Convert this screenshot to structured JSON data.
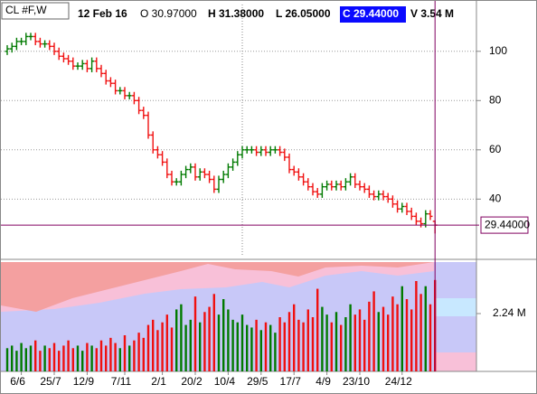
{
  "chart_data": {
    "type": "ohlc",
    "header": {
      "symbol": "CL #F,W",
      "date": "12 Feb 16",
      "open": "O 30.97000",
      "high": "H 31.38000",
      "low": "L 26.05000",
      "close": "C 29.44000",
      "volume": "V 3.54 M"
    },
    "categories": [
      null,
      null,
      null,
      "6/6",
      null,
      null,
      null,
      null,
      null,
      null,
      "25/7",
      null,
      null,
      null,
      null,
      null,
      null,
      "12/9",
      null,
      null,
      null,
      null,
      null,
      null,
      null,
      "7/11",
      null,
      null,
      null,
      null,
      null,
      null,
      null,
      "2/1",
      null,
      null,
      null,
      null,
      null,
      null,
      "20/2",
      null,
      null,
      null,
      null,
      null,
      null,
      "10/4",
      null,
      null,
      null,
      null,
      null,
      null,
      "29/5",
      null,
      null,
      null,
      null,
      null,
      null,
      "17/7",
      null,
      null,
      null,
      null,
      null,
      null,
      "4/9",
      null,
      null,
      null,
      null,
      null,
      null,
      "23/10",
      null,
      null,
      null,
      null,
      null,
      null,
      null,
      null,
      "24/12",
      null,
      null,
      null,
      null,
      null,
      null,
      null
    ],
    "open": [
      100,
      101,
      102,
      104,
      104,
      106,
      106,
      104,
      103,
      103,
      102,
      100,
      98,
      97,
      96,
      94,
      94,
      95,
      93,
      96,
      93,
      91,
      88,
      87,
      84,
      84,
      82,
      82,
      80,
      76,
      74,
      66,
      60,
      58,
      55,
      50,
      47,
      47,
      50,
      52,
      53,
      49,
      51,
      50,
      48,
      44,
      48,
      50,
      53,
      55,
      58,
      60,
      60,
      60,
      59,
      60,
      59,
      60,
      60,
      59,
      57,
      52,
      51,
      49,
      47,
      45,
      43,
      42,
      45,
      46,
      45,
      46,
      45,
      47,
      49,
      46,
      45,
      44,
      42,
      41,
      42,
      41,
      40,
      38,
      36,
      37,
      35,
      33,
      31,
      30,
      34,
      30.97
    ],
    "high": [
      102.5,
      103.5,
      105.5,
      105.5,
      107.5,
      107.5,
      107.5,
      105.5,
      104.5,
      104.5,
      103.5,
      101.5,
      99.5,
      98.5,
      97.5,
      95.5,
      96.5,
      96.5,
      97.5,
      97.5,
      94.5,
      92.5,
      89.5,
      88.5,
      85.5,
      85.5,
      83.5,
      83.5,
      81.5,
      77.5,
      75.5,
      67.5,
      61.5,
      59.5,
      56.5,
      51.5,
      48.5,
      51.5,
      53.5,
      54.5,
      54.5,
      52.5,
      52.5,
      51.5,
      49.5,
      49.5,
      51.5,
      54.5,
      56.5,
      59.5,
      61.5,
      61.5,
      61.5,
      61.5,
      61.5,
      61.5,
      61.5,
      61.5,
      61.5,
      60.5,
      58.5,
      53.5,
      52.5,
      50.5,
      48.5,
      46.5,
      44.5,
      46.5,
      47.5,
      47.5,
      47.5,
      47.5,
      48.5,
      50.5,
      50.5,
      47.5,
      46.5,
      45.5,
      43.5,
      43.5,
      43.5,
      42.5,
      41.5,
      39.5,
      38.5,
      38.5,
      36.5,
      34.5,
      32.5,
      35.5,
      35.5,
      31.38
    ],
    "low": [
      98.5,
      99.5,
      100.5,
      102.5,
      102.5,
      104.5,
      102.5,
      101.5,
      101.5,
      100.5,
      98.5,
      96.5,
      95.5,
      94.5,
      92.5,
      92.5,
      92.5,
      91.5,
      91.5,
      91.5,
      89.5,
      86.5,
      85.5,
      82.5,
      82.5,
      80.5,
      80.5,
      78.5,
      74.5,
      72.5,
      64.5,
      58.5,
      56.5,
      53.5,
      48.5,
      45.5,
      45.5,
      45.5,
      48.5,
      50.5,
      47.5,
      47.5,
      48.5,
      46.5,
      42.5,
      42.5,
      46.5,
      48.5,
      51.5,
      53.5,
      56.5,
      58.5,
      58.5,
      57.5,
      57.5,
      57.5,
      57.5,
      58.5,
      57.5,
      55.5,
      50.5,
      49.5,
      47.5,
      45.5,
      43.5,
      41.5,
      40.5,
      40.5,
      43.5,
      43.5,
      43.5,
      43.5,
      43.5,
      45.5,
      44.5,
      43.5,
      42.5,
      40.5,
      39.5,
      39.5,
      39.5,
      38.5,
      36.5,
      34.5,
      34.5,
      33.5,
      31.5,
      29.5,
      28.5,
      28.5,
      31.5,
      26.05
    ],
    "close": [
      101,
      102,
      104,
      104,
      106,
      106,
      104,
      103,
      103,
      102,
      100,
      98,
      97,
      96,
      94,
      94,
      95,
      93,
      96,
      93,
      91,
      88,
      87,
      84,
      84,
      82,
      82,
      80,
      76,
      74,
      66,
      60,
      58,
      55,
      50,
      47,
      47,
      50,
      52,
      53,
      49,
      51,
      50,
      48,
      44,
      48,
      50,
      53,
      55,
      58,
      60,
      60,
      60,
      59,
      60,
      59,
      60,
      60,
      59,
      57,
      52,
      51,
      49,
      47,
      45,
      43,
      42,
      45,
      46,
      45,
      46,
      45,
      47,
      49,
      46,
      45,
      44,
      42,
      41,
      42,
      41,
      40,
      38,
      36,
      37,
      35,
      33,
      31,
      30,
      34,
      33,
      29.44
    ],
    "volume": [
      0.9,
      1.0,
      0.8,
      1.1,
      0.9,
      1.0,
      1.2,
      0.8,
      1.0,
      0.9,
      1.1,
      0.8,
      1.0,
      1.2,
      0.9,
      1.0,
      0.8,
      1.1,
      1.0,
      0.9,
      1.2,
      1.0,
      1.3,
      1.1,
      0.9,
      1.4,
      1.0,
      1.2,
      1.5,
      1.3,
      1.8,
      2.0,
      1.6,
      1.9,
      2.2,
      1.7,
      2.4,
      2.6,
      1.8,
      2.0,
      2.9,
      1.9,
      2.3,
      2.5,
      3.0,
      2.2,
      2.8,
      2.4,
      2.0,
      1.9,
      2.2,
      1.8,
      1.7,
      2.0,
      1.6,
      1.9,
      1.8,
      1.5,
      2.1,
      1.9,
      2.3,
      2.6,
      2.0,
      1.9,
      2.4,
      2.1,
      3.2,
      2.5,
      2.2,
      1.9,
      2.3,
      1.8,
      2.1,
      2.6,
      2.2,
      2.4,
      2.0,
      2.7,
      3.1,
      2.3,
      2.5,
      2.2,
      2.9,
      2.6,
      3.3,
      2.8,
      2.4,
      3.5,
      3.0,
      3.3,
      2.6,
      3.54
    ],
    "up_color": "#007a00",
    "down_color": "#f01010",
    "ylim": [
      17,
      119
    ],
    "yticks": [
      40,
      60,
      80,
      100
    ],
    "grid": true,
    "volume_ylim": [
      0,
      4.2
    ],
    "volume_yticks": [
      {
        "value": 2.24,
        "label": "2.24 M"
      }
    ],
    "crosshair": {
      "value": 29.44,
      "label": "29.44000"
    }
  }
}
